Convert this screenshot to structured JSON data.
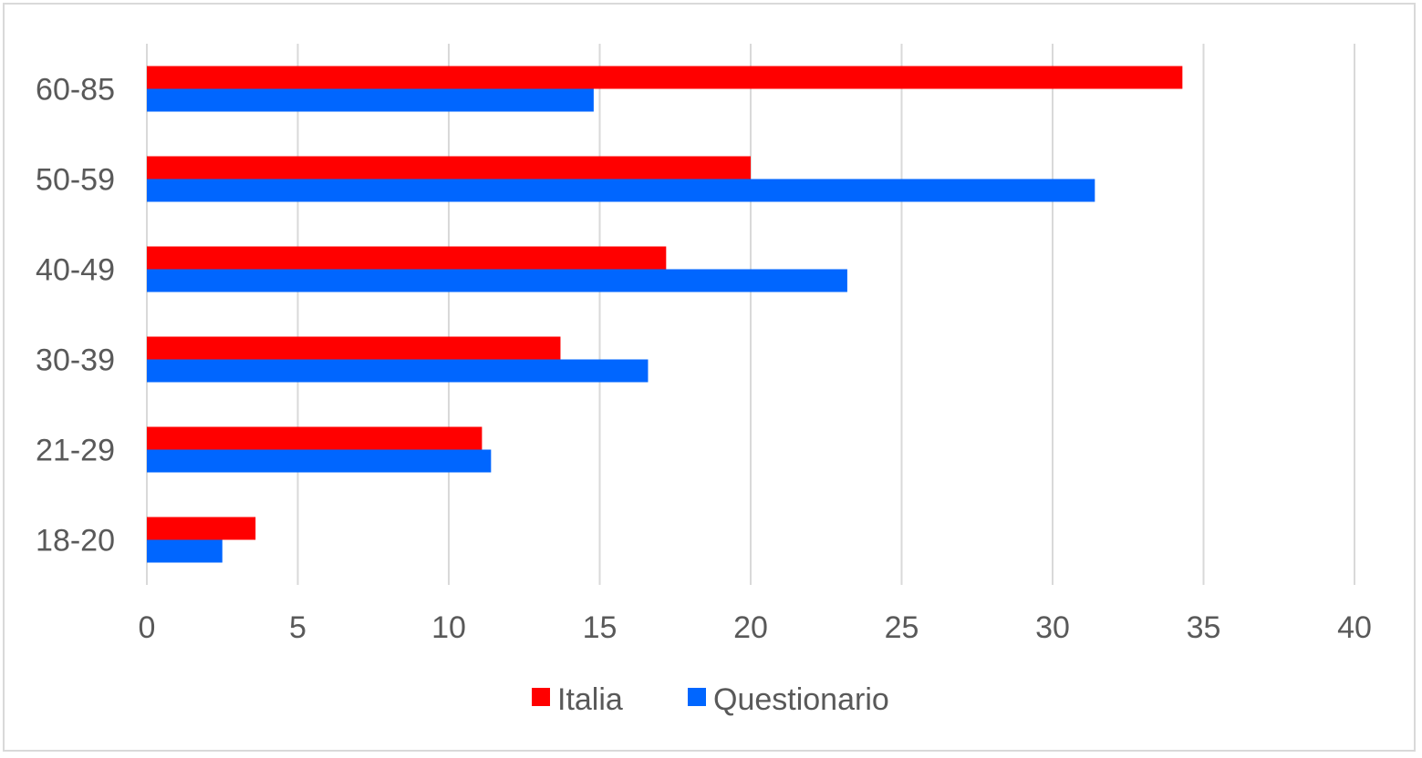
{
  "chart_data": {
    "type": "bar",
    "orientation": "horizontal",
    "categories": [
      "60-85",
      "50-59",
      "40-49",
      "30-39",
      "21-29",
      "18-20"
    ],
    "series": [
      {
        "name": "Italia",
        "color": "#ff0000",
        "values": [
          34.3,
          20.0,
          17.2,
          13.7,
          11.1,
          3.6
        ]
      },
      {
        "name": "Questionario",
        "color": "#0066ff",
        "values": [
          14.8,
          31.4,
          23.2,
          16.6,
          11.4,
          2.5
        ]
      }
    ],
    "xlim": [
      0,
      40
    ],
    "xticks": [
      "0",
      "5",
      "10",
      "15",
      "20",
      "25",
      "30",
      "35",
      "40"
    ],
    "grid": true,
    "legend": "bottom-center"
  }
}
